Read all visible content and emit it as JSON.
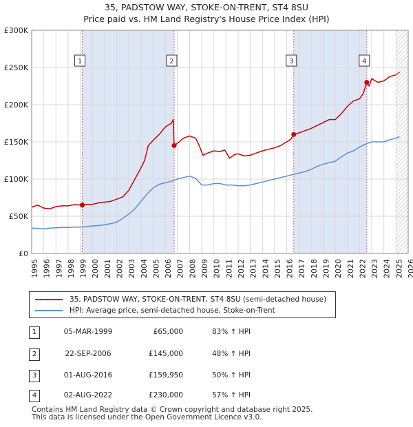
{
  "title_line1": "35, PADSTOW WAY, STOKE-ON-TRENT, ST4 8SU",
  "title_line2": "Price paid vs. HM Land Registry's House Price Index (HPI)",
  "colors": {
    "property": "#cc0000",
    "hpi": "#5b8fd1",
    "shade": "#dde6f5",
    "grid": "#d8d8d8"
  },
  "legend": {
    "property": "35, PADSTOW WAY, STOKE-ON-TRENT, ST4 8SU (semi-detached house)",
    "hpi": "HPI: Average price, semi-detached house, Stoke-on-Trent"
  },
  "sales": [
    {
      "num": "1",
      "date": "05-MAR-1999",
      "price": "£65,000",
      "hpi": "83% ↑ HPI"
    },
    {
      "num": "2",
      "date": "22-SEP-2006",
      "price": "£145,000",
      "hpi": "48% ↑ HPI"
    },
    {
      "num": "3",
      "date": "01-AUG-2016",
      "price": "£159,950",
      "hpi": "50% ↑ HPI"
    },
    {
      "num": "4",
      "date": "02-AUG-2022",
      "price": "£230,000",
      "hpi": "57% ↑ HPI"
    }
  ],
  "footer": {
    "line1": "Contains HM Land Registry data © Crown copyright and database right 2025.",
    "line2": "This data is licensed under the Open Government Licence v3.0."
  },
  "chart_data": {
    "type": "line",
    "title": "35, PADSTOW WAY, STOKE-ON-TRENT, ST4 8SU — Price paid vs. HM Land Registry's House Price Index (HPI)",
    "xlabel": "",
    "ylabel": "",
    "xlim": [
      1995,
      2026
    ],
    "ylim": [
      0,
      300000
    ],
    "xticks": [
      1995,
      1996,
      1997,
      1998,
      1999,
      2000,
      2001,
      2002,
      2003,
      2004,
      2005,
      2006,
      2007,
      2008,
      2009,
      2010,
      2011,
      2012,
      2013,
      2014,
      2015,
      2016,
      2017,
      2018,
      2019,
      2020,
      2021,
      2022,
      2023,
      2024,
      2025,
      2026
    ],
    "yticks": [
      {
        "value": 0,
        "label": "£0"
      },
      {
        "value": 50000,
        "label": "£50K"
      },
      {
        "value": 100000,
        "label": "£100K"
      },
      {
        "value": 150000,
        "label": "£150K"
      },
      {
        "value": 200000,
        "label": "£200K"
      },
      {
        "value": 250000,
        "label": "£250K"
      },
      {
        "value": 300000,
        "label": "£300K"
      }
    ],
    "grid": true,
    "projection_start": 2025.0,
    "series": [
      {
        "name": "35, PADSTOW WAY, STOKE-ON-TRENT, ST4 8SU (semi-detached house)",
        "color": "#cc0000",
        "points": [
          [
            1995.0,
            62000
          ],
          [
            1995.5,
            65000
          ],
          [
            1996.0,
            61000
          ],
          [
            1996.5,
            60000
          ],
          [
            1997.0,
            63000
          ],
          [
            1997.5,
            64000
          ],
          [
            1998.0,
            64000
          ],
          [
            1998.5,
            65500
          ],
          [
            1999.17,
            65000
          ],
          [
            1999.5,
            66000
          ],
          [
            2000.0,
            66000
          ],
          [
            2000.5,
            68000
          ],
          [
            2001.0,
            69000
          ],
          [
            2001.5,
            70000
          ],
          [
            2002.0,
            73000
          ],
          [
            2002.5,
            76000
          ],
          [
            2003.0,
            85000
          ],
          [
            2003.5,
            100000
          ],
          [
            2004.0,
            115000
          ],
          [
            2004.3,
            125000
          ],
          [
            2004.6,
            145000
          ],
          [
            2005.0,
            152000
          ],
          [
            2005.5,
            160000
          ],
          [
            2006.0,
            170000
          ],
          [
            2006.5,
            175000
          ],
          [
            2006.65,
            180000
          ],
          [
            2006.73,
            145000
          ],
          [
            2007.0,
            148000
          ],
          [
            2007.5,
            155000
          ],
          [
            2008.0,
            158000
          ],
          [
            2008.5,
            155000
          ],
          [
            2008.8,
            145000
          ],
          [
            2009.1,
            132000
          ],
          [
            2009.5,
            135000
          ],
          [
            2010.0,
            138000
          ],
          [
            2010.5,
            137000
          ],
          [
            2010.9,
            139000
          ],
          [
            2011.3,
            128000
          ],
          [
            2011.7,
            133000
          ],
          [
            2012.0,
            134000
          ],
          [
            2012.5,
            131000
          ],
          [
            2013.0,
            132000
          ],
          [
            2013.5,
            135000
          ],
          [
            2014.0,
            138000
          ],
          [
            2014.5,
            140000
          ],
          [
            2015.0,
            142000
          ],
          [
            2015.5,
            145000
          ],
          [
            2016.0,
            150000
          ],
          [
            2016.3,
            153000
          ],
          [
            2016.58,
            159950
          ],
          [
            2017.0,
            162000
          ],
          [
            2017.5,
            165000
          ],
          [
            2018.0,
            168000
          ],
          [
            2018.5,
            172000
          ],
          [
            2019.0,
            176000
          ],
          [
            2019.5,
            180000
          ],
          [
            2020.0,
            180000
          ],
          [
            2020.5,
            188000
          ],
          [
            2021.0,
            198000
          ],
          [
            2021.5,
            205000
          ],
          [
            2022.0,
            208000
          ],
          [
            2022.3,
            215000
          ],
          [
            2022.59,
            230000
          ],
          [
            2022.8,
            225000
          ],
          [
            2023.0,
            235000
          ],
          [
            2023.5,
            230000
          ],
          [
            2024.0,
            232000
          ],
          [
            2024.5,
            238000
          ],
          [
            2025.0,
            240000
          ],
          [
            2025.3,
            244000
          ]
        ]
      },
      {
        "name": "HPI: Average price, semi-detached house, Stoke-on-Trent",
        "color": "#5b8fd1",
        "points": [
          [
            1995.0,
            34000
          ],
          [
            1995.5,
            33500
          ],
          [
            1996.0,
            33000
          ],
          [
            1996.5,
            34000
          ],
          [
            1997.0,
            34500
          ],
          [
            1997.5,
            35000
          ],
          [
            1998.0,
            35000
          ],
          [
            1998.5,
            35500
          ],
          [
            1999.0,
            35500
          ],
          [
            1999.5,
            36000
          ],
          [
            2000.0,
            37000
          ],
          [
            2000.5,
            37500
          ],
          [
            2001.0,
            38500
          ],
          [
            2001.5,
            40000
          ],
          [
            2002.0,
            42000
          ],
          [
            2002.5,
            47000
          ],
          [
            2003.0,
            53000
          ],
          [
            2003.5,
            60000
          ],
          [
            2004.0,
            70000
          ],
          [
            2004.5,
            80000
          ],
          [
            2005.0,
            88000
          ],
          [
            2005.5,
            93000
          ],
          [
            2006.0,
            95000
          ],
          [
            2006.5,
            97000
          ],
          [
            2007.0,
            100000
          ],
          [
            2007.5,
            102000
          ],
          [
            2008.0,
            104000
          ],
          [
            2008.5,
            101000
          ],
          [
            2009.0,
            92000
          ],
          [
            2009.5,
            92000
          ],
          [
            2010.0,
            94000
          ],
          [
            2010.5,
            94000
          ],
          [
            2011.0,
            92000
          ],
          [
            2011.5,
            92000
          ],
          [
            2012.0,
            91000
          ],
          [
            2012.5,
            91000
          ],
          [
            2013.0,
            92000
          ],
          [
            2013.5,
            94000
          ],
          [
            2014.0,
            96000
          ],
          [
            2014.5,
            98000
          ],
          [
            2015.0,
            100000
          ],
          [
            2015.5,
            102000
          ],
          [
            2016.0,
            104000
          ],
          [
            2016.5,
            106000
          ],
          [
            2017.0,
            108000
          ],
          [
            2017.5,
            110000
          ],
          [
            2018.0,
            113000
          ],
          [
            2018.5,
            117000
          ],
          [
            2019.0,
            120000
          ],
          [
            2019.5,
            122000
          ],
          [
            2020.0,
            124000
          ],
          [
            2020.5,
            130000
          ],
          [
            2021.0,
            135000
          ],
          [
            2021.5,
            138000
          ],
          [
            2022.0,
            143000
          ],
          [
            2022.5,
            147000
          ],
          [
            2023.0,
            150000
          ],
          [
            2023.5,
            150000
          ],
          [
            2024.0,
            150000
          ],
          [
            2024.5,
            153000
          ],
          [
            2025.0,
            155000
          ],
          [
            2025.3,
            157000
          ]
        ]
      }
    ],
    "sale_markers": [
      {
        "num": "1",
        "x": 1999.17,
        "y": 65000
      },
      {
        "num": "2",
        "x": 2006.73,
        "y": 145000
      },
      {
        "num": "3",
        "x": 2016.58,
        "y": 159950
      },
      {
        "num": "4",
        "x": 2022.59,
        "y": 230000
      }
    ],
    "shaded_periods": [
      [
        1999.17,
        2006.73
      ],
      [
        2016.58,
        2022.59
      ]
    ]
  }
}
